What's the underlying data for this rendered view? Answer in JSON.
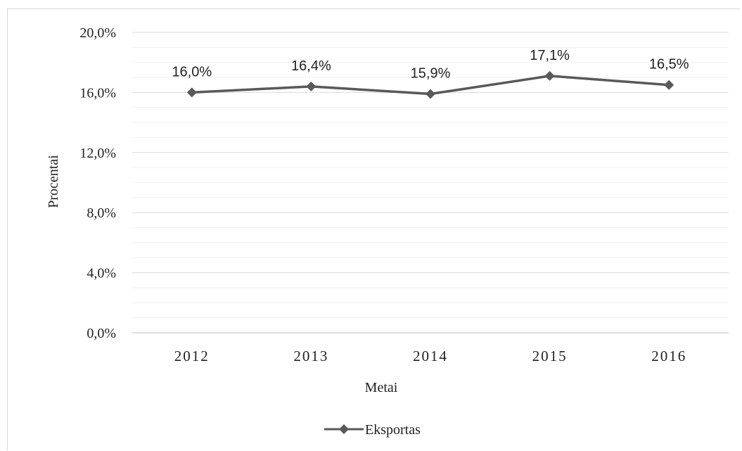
{
  "chart_data": {
    "type": "line",
    "categories": [
      "2012",
      "2013",
      "2014",
      "2015",
      "2016"
    ],
    "series": [
      {
        "name": "Eksportas",
        "values": [
          16.0,
          16.4,
          15.9,
          17.1,
          16.5
        ],
        "color": "#595959"
      }
    ],
    "data_labels": [
      "16,0%",
      "16,4%",
      "15,9%",
      "17,1%",
      "16,5%"
    ],
    "y_ticks": [
      "0,0%",
      "4,0%",
      "8,0%",
      "12,0%",
      "16,0%",
      "20,0%"
    ],
    "ylim": [
      0,
      20
    ],
    "xlabel": "Metai",
    "ylabel": "Procentai",
    "grid": true,
    "legend_position": "bottom",
    "marker": "diamond"
  }
}
